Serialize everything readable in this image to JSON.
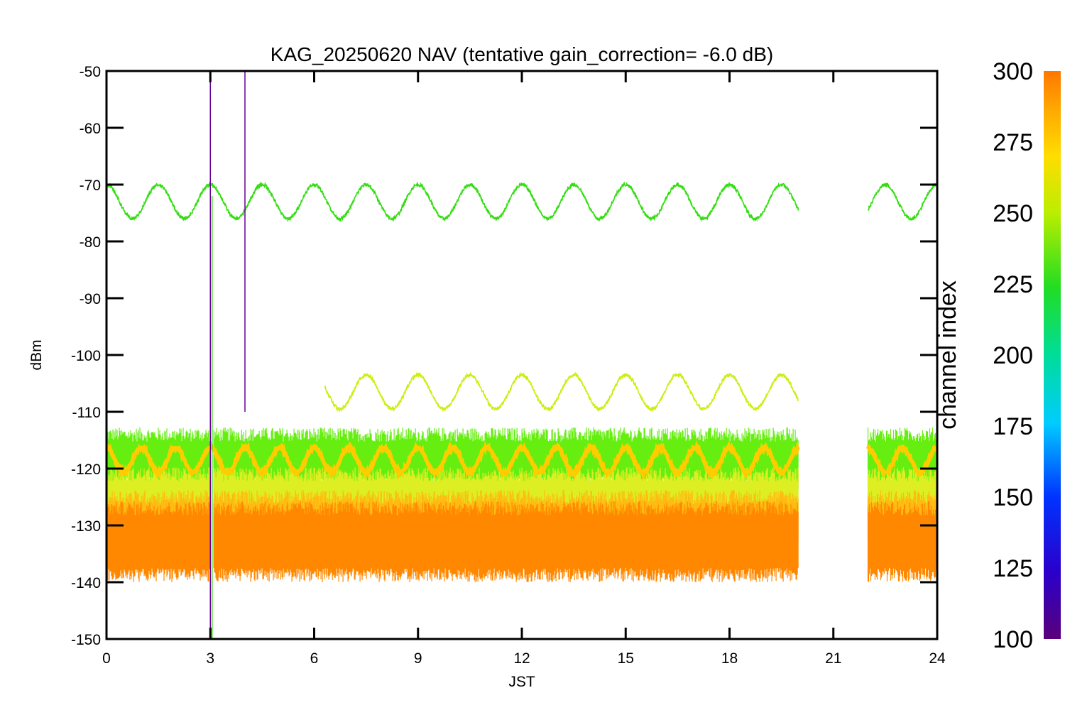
{
  "chart_data": {
    "type": "line",
    "title": "KAG_20250620 NAV (tentative gain_correction= -6.0 dB)",
    "xlabel": "JST",
    "ylabel": "dBm",
    "xlim": [
      0,
      24
    ],
    "ylim": [
      -150,
      -50
    ],
    "x_ticks": [
      0,
      3,
      6,
      9,
      12,
      15,
      18,
      21,
      24
    ],
    "y_ticks": [
      -50,
      -60,
      -70,
      -80,
      -90,
      -100,
      -110,
      -120,
      -130,
      -140,
      -150
    ],
    "grid": false,
    "data_gap": [
      20.0,
      22.0
    ],
    "colorbar": {
      "label": "channel index",
      "range": [
        100,
        300
      ],
      "ticks": [
        100,
        125,
        150,
        175,
        200,
        225,
        250,
        275,
        300
      ]
    },
    "series": [
      {
        "channel": 255,
        "color": "#33dd11",
        "center": -73,
        "amplitude": 3,
        "period_h": 1.5,
        "segments": [
          [
            0,
            20
          ],
          [
            22,
            24
          ]
        ]
      },
      {
        "channel": 265,
        "color": "#ccee11",
        "center": -106.5,
        "amplitude": 3,
        "period_h": 1.5,
        "segments": [
          [
            6.3,
            20
          ]
        ]
      },
      {
        "channel": 278,
        "color": "#ffcc00",
        "center": -118.5,
        "amplitude": 2.2,
        "period_h": 1.0,
        "segments": [
          [
            0,
            20
          ],
          [
            22,
            24
          ]
        ]
      }
    ],
    "noise_bands": [
      {
        "channel": 250,
        "color": "#66ee11",
        "from": -122,
        "to": -114
      },
      {
        "channel": 265,
        "color": "#ddee22",
        "from": -127,
        "to": -121
      },
      {
        "channel": 280,
        "color": "#ffbb11",
        "from": -131,
        "to": -125
      },
      {
        "channel": 295,
        "color": "#ff8800",
        "from": -138,
        "to": -127
      }
    ],
    "spikes": [
      {
        "x": 3.0,
        "y_from": -150,
        "y_to": -50,
        "color": "#660099"
      },
      {
        "x": 4.0,
        "y_from": -110,
        "y_to": -50,
        "color": "#660099"
      },
      {
        "x": 3.05,
        "y_from": -150,
        "y_to": -72,
        "color": "#33dd11"
      }
    ]
  }
}
